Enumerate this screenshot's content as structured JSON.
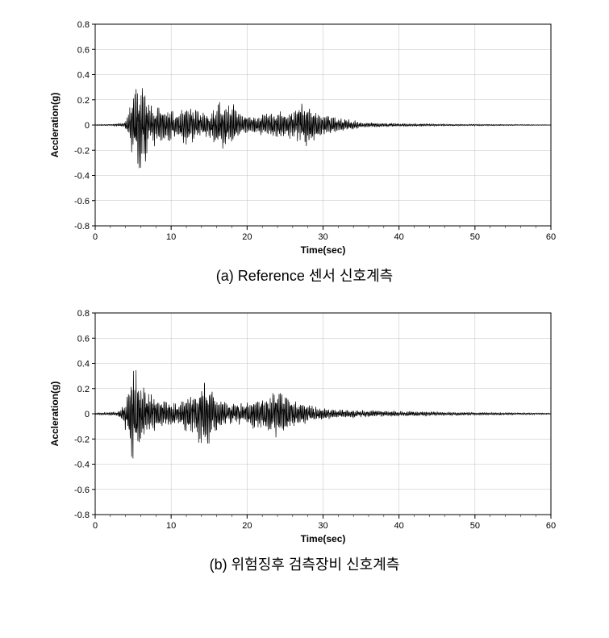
{
  "charts": [
    {
      "id": "chart-a",
      "type": "line",
      "caption": "(a) Reference 센서 신호계측",
      "xlabel": "Time(sec)",
      "ylabel": "Accleration(g)",
      "xlim": [
        0,
        60
      ],
      "ylim": [
        -0.8,
        0.8
      ],
      "xtick_step": 10,
      "ytick_step": 0.2,
      "background_color": "#ffffff",
      "plot_bg": "#ffffff",
      "grid_color": "#c0c0c0",
      "axis_color": "#000000",
      "line_color": "#000000",
      "line_width": 0.7,
      "minor_xtick_count": 5,
      "label_fontsize": 12,
      "tick_fontsize": 11,
      "envelope": [
        {
          "t": 0,
          "a": 0.005
        },
        {
          "t": 2,
          "a": 0.01
        },
        {
          "t": 3.8,
          "a": 0.02
        },
        {
          "t": 4.4,
          "a": 0.15
        },
        {
          "t": 5.0,
          "a": 0.35
        },
        {
          "t": 5.5,
          "a": 0.46
        },
        {
          "t": 6.0,
          "a": 0.53
        },
        {
          "t": 6.5,
          "a": 0.42
        },
        {
          "t": 7.2,
          "a": 0.28
        },
        {
          "t": 8.0,
          "a": 0.22
        },
        {
          "t": 9.0,
          "a": 0.2
        },
        {
          "t": 10,
          "a": 0.18
        },
        {
          "t": 11,
          "a": 0.15
        },
        {
          "t": 12,
          "a": 0.24
        },
        {
          "t": 13,
          "a": 0.18
        },
        {
          "t": 14,
          "a": 0.13
        },
        {
          "t": 15,
          "a": 0.16
        },
        {
          "t": 16,
          "a": 0.22
        },
        {
          "t": 17,
          "a": 0.3
        },
        {
          "t": 18,
          "a": 0.24
        },
        {
          "t": 19,
          "a": 0.15
        },
        {
          "t": 20,
          "a": 0.12
        },
        {
          "t": 21,
          "a": 0.1
        },
        {
          "t": 22,
          "a": 0.13
        },
        {
          "t": 23,
          "a": 0.16
        },
        {
          "t": 24,
          "a": 0.18
        },
        {
          "t": 25,
          "a": 0.14
        },
        {
          "t": 26,
          "a": 0.17
        },
        {
          "t": 27,
          "a": 0.24
        },
        {
          "t": 28,
          "a": 0.26
        },
        {
          "t": 29,
          "a": 0.16
        },
        {
          "t": 30,
          "a": 0.14
        },
        {
          "t": 31,
          "a": 0.11
        },
        {
          "t": 32,
          "a": 0.09
        },
        {
          "t": 33,
          "a": 0.07
        },
        {
          "t": 34,
          "a": 0.05
        },
        {
          "t": 35,
          "a": 0.035
        },
        {
          "t": 36,
          "a": 0.028
        },
        {
          "t": 38,
          "a": 0.022
        },
        {
          "t": 40,
          "a": 0.018
        },
        {
          "t": 42,
          "a": 0.015
        },
        {
          "t": 45,
          "a": 0.012
        },
        {
          "t": 48,
          "a": 0.01
        },
        {
          "t": 52,
          "a": 0.008
        },
        {
          "t": 56,
          "a": 0.006
        },
        {
          "t": 60,
          "a": 0.004
        }
      ]
    },
    {
      "id": "chart-b",
      "type": "line",
      "caption": "(b) 위험징후 검측장비 신호계측",
      "xlabel": "Time(sec)",
      "ylabel": "Accleration(g)",
      "xlim": [
        0,
        60
      ],
      "ylim": [
        -0.8,
        0.8
      ],
      "xtick_step": 10,
      "ytick_step": 0.2,
      "background_color": "#ffffff",
      "plot_bg": "#ffffff",
      "grid_color": "#c0c0c0",
      "axis_color": "#000000",
      "line_color": "#000000",
      "line_width": 0.7,
      "minor_xtick_count": 5,
      "label_fontsize": 12,
      "tick_fontsize": 11,
      "envelope": [
        {
          "t": 0,
          "a": 0.01
        },
        {
          "t": 1.5,
          "a": 0.015
        },
        {
          "t": 3.0,
          "a": 0.025
        },
        {
          "t": 3.8,
          "a": 0.12
        },
        {
          "t": 4.5,
          "a": 0.4
        },
        {
          "t": 5.0,
          "a": 0.56
        },
        {
          "t": 5.5,
          "a": 0.48
        },
        {
          "t": 6.2,
          "a": 0.36
        },
        {
          "t": 7.0,
          "a": 0.26
        },
        {
          "t": 8.0,
          "a": 0.2
        },
        {
          "t": 9.0,
          "a": 0.17
        },
        {
          "t": 10,
          "a": 0.15
        },
        {
          "t": 11,
          "a": 0.13
        },
        {
          "t": 12,
          "a": 0.2
        },
        {
          "t": 13,
          "a": 0.26
        },
        {
          "t": 14,
          "a": 0.34
        },
        {
          "t": 15,
          "a": 0.4
        },
        {
          "t": 15.5,
          "a": 0.28
        },
        {
          "t": 16.5,
          "a": 0.17
        },
        {
          "t": 18,
          "a": 0.14
        },
        {
          "t": 19,
          "a": 0.12
        },
        {
          "t": 20,
          "a": 0.15
        },
        {
          "t": 21,
          "a": 0.18
        },
        {
          "t": 22,
          "a": 0.2
        },
        {
          "t": 23,
          "a": 0.22
        },
        {
          "t": 24,
          "a": 0.25
        },
        {
          "t": 24.5,
          "a": 0.3
        },
        {
          "t": 25.5,
          "a": 0.2
        },
        {
          "t": 27,
          "a": 0.13
        },
        {
          "t": 28,
          "a": 0.1
        },
        {
          "t": 29,
          "a": 0.08
        },
        {
          "t": 30,
          "a": 0.07
        },
        {
          "t": 31,
          "a": 0.06
        },
        {
          "t": 32,
          "a": 0.05
        },
        {
          "t": 34,
          "a": 0.045
        },
        {
          "t": 36,
          "a": 0.04
        },
        {
          "t": 38,
          "a": 0.035
        },
        {
          "t": 40,
          "a": 0.03
        },
        {
          "t": 43,
          "a": 0.026
        },
        {
          "t": 46,
          "a": 0.022
        },
        {
          "t": 50,
          "a": 0.018
        },
        {
          "t": 54,
          "a": 0.014
        },
        {
          "t": 58,
          "a": 0.01
        },
        {
          "t": 60,
          "a": 0.008
        }
      ]
    }
  ]
}
